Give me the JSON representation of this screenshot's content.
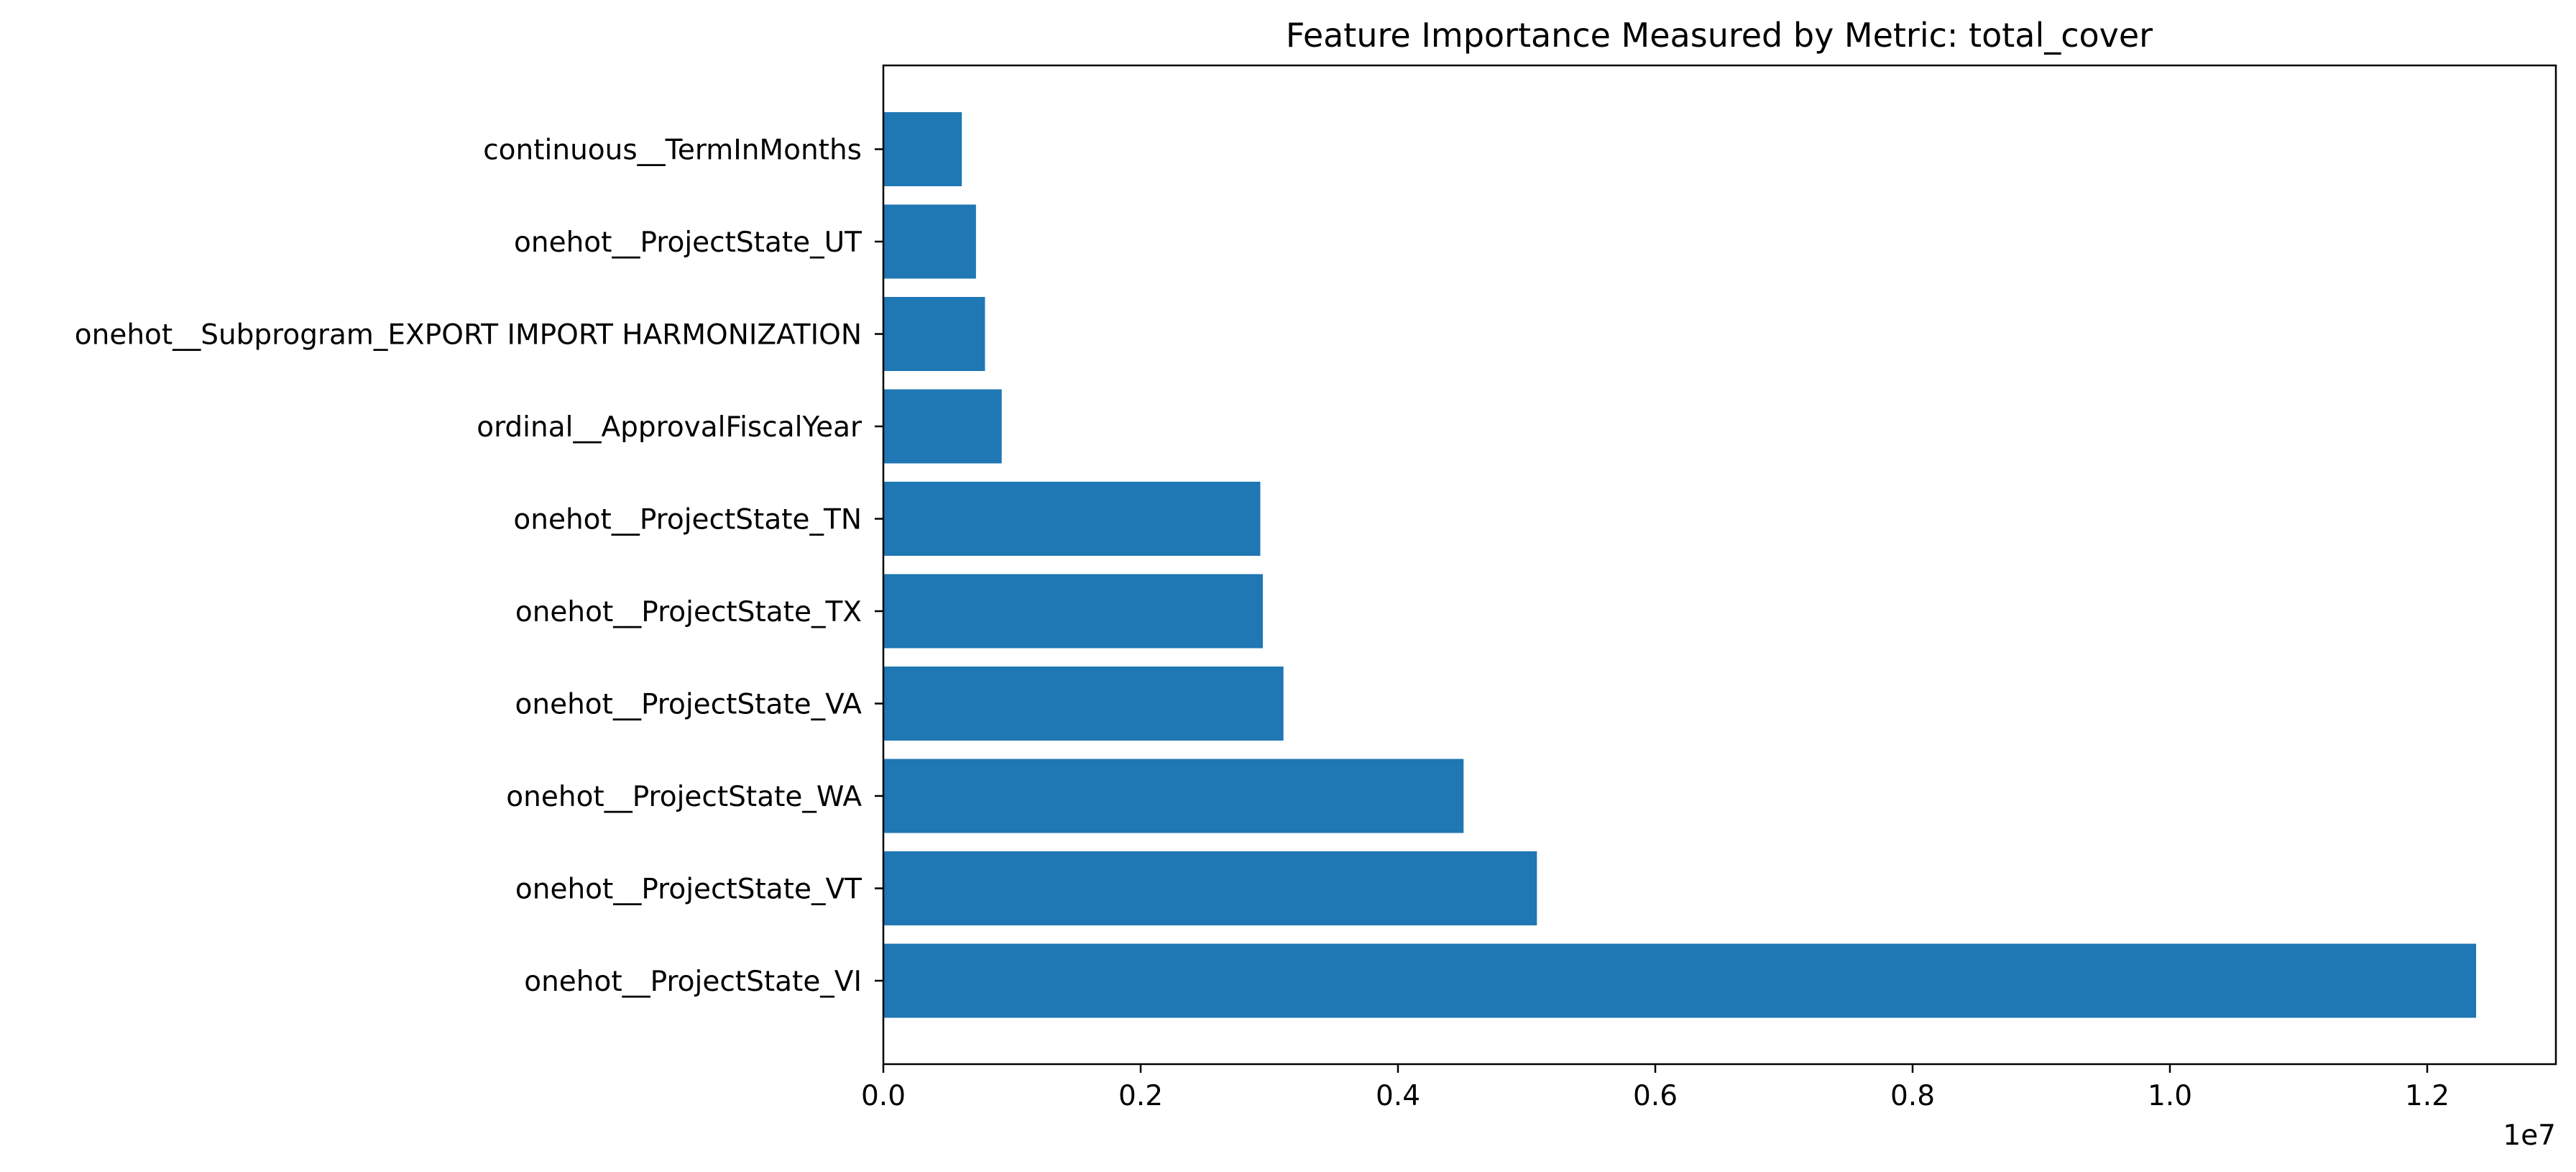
{
  "chart_data": {
    "type": "bar",
    "orientation": "horizontal",
    "title": "Feature Importance Measured by Metric: total_cover",
    "xlabel": "",
    "ylabel": "",
    "x_scale_label": "1e7",
    "xlim": [
      0,
      1.3
    ],
    "x_ticks": [
      "0.0",
      "0.2",
      "0.4",
      "0.6",
      "0.8",
      "1.0",
      "1.2"
    ],
    "grid": false,
    "legend": "none",
    "bar_color": "#1f77b4",
    "categories": [
      "onehot__ProjectState_VI",
      "onehot__ProjectState_VT",
      "onehot__ProjectState_WA",
      "onehot__ProjectState_VA",
      "onehot__ProjectState_TX",
      "onehot__ProjectState_TN",
      "ordinal__ApprovalFiscalYear",
      "onehot__Subprogram_EXPORT IMPORT HARMONIZATION",
      "onehot__ProjectState_UT",
      "continuous__TermInMonths"
    ],
    "values": [
      1.238,
      0.508,
      0.451,
      0.311,
      0.295,
      0.293,
      0.092,
      0.079,
      0.072,
      0.061
    ]
  }
}
